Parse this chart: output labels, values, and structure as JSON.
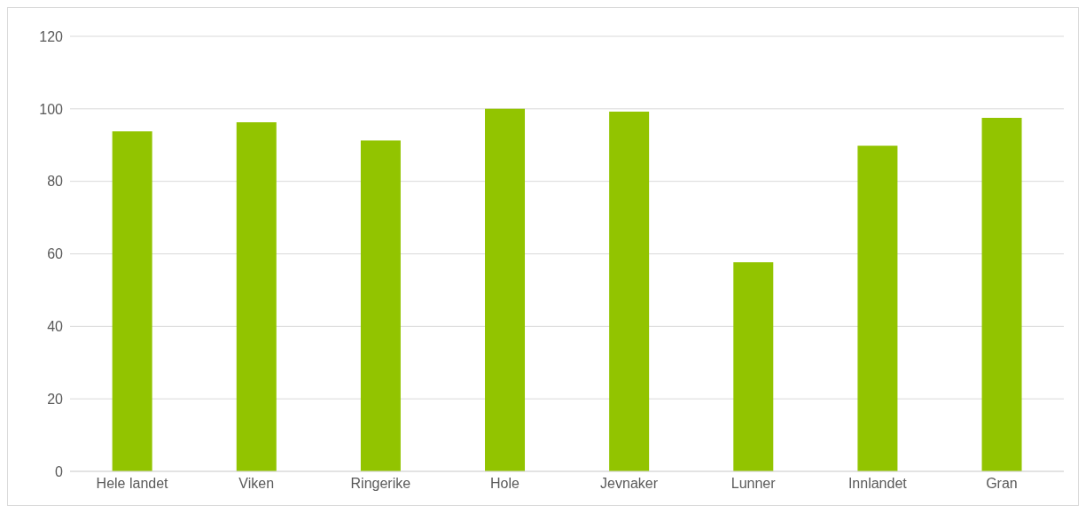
{
  "chart_data": {
    "type": "bar",
    "categories": [
      "Hele landet",
      "Viken",
      "Ringerike",
      "Hole",
      "Jevnaker",
      "Lunner",
      "Innlandet",
      "Gran"
    ],
    "values": [
      93.8,
      96.3,
      91.3,
      100,
      99.2,
      57.7,
      89.8,
      97.5
    ],
    "color": "#92c400",
    "ylim": [
      0,
      120
    ],
    "yticks": [
      0,
      20,
      40,
      60,
      80,
      100,
      120
    ],
    "grid": "y"
  }
}
